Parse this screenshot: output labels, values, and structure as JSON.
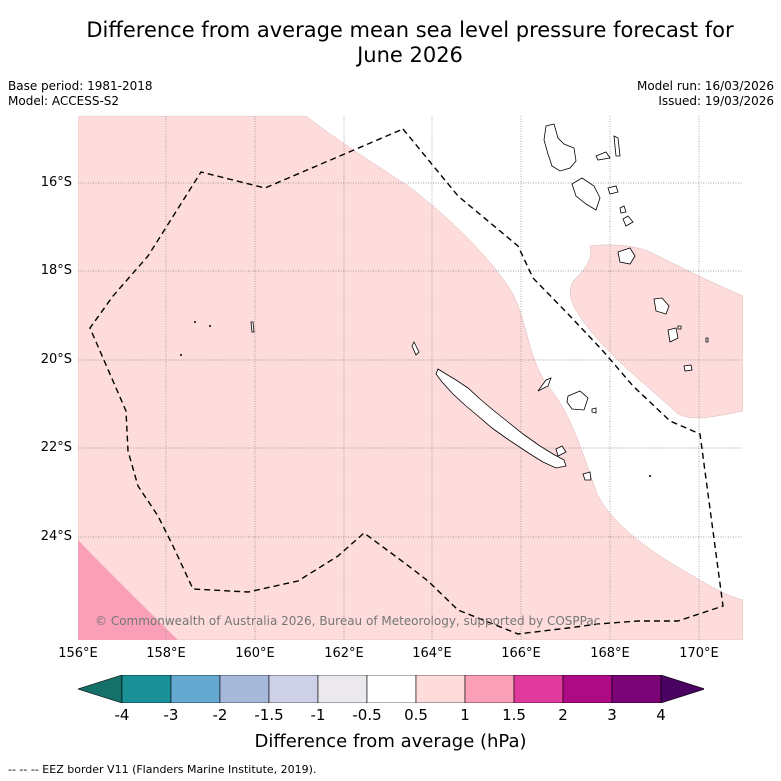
{
  "title_line1": "Difference from average mean sea level pressure forecast for",
  "title_line2": "June 2026",
  "meta": {
    "base_period": "Base period: 1981-2018",
    "model": "Model: ACCESS-S2",
    "model_run": "Model run: 16/03/2026",
    "issued": "Issued: 19/03/2026"
  },
  "map": {
    "lat_labels": [
      "16°S",
      "18°S",
      "20°S",
      "22°S",
      "24°S"
    ],
    "lon_labels": [
      "156°E",
      "158°E",
      "160°E",
      "162°E",
      "164°E",
      "166°E",
      "168°E",
      "170°E"
    ],
    "copyright": "© Commonwealth of Australia 2026, Bureau of Meteorology, supported by COSPPac"
  },
  "colorbar": {
    "title": "Difference from average (hPa)",
    "labels": [
      "-4",
      "-3",
      "-2",
      "-1.5",
      "-1",
      "-0.5",
      "0.5",
      "1",
      "1.5",
      "2",
      "3",
      "4"
    ],
    "colors": [
      "#16706a",
      "#1a9196",
      "#65a8d2",
      "#a7b9db",
      "#cdd0e6",
      "#ebe9ee",
      "#ffffff",
      "#fddcdb",
      "#f9a0b8",
      "#df3a9c",
      "#ae0a86",
      "#7b0477",
      "#4a0361"
    ]
  },
  "footnote": "-- -- -- EEZ border V11 (Flanders Marine Institute, 2019)."
}
